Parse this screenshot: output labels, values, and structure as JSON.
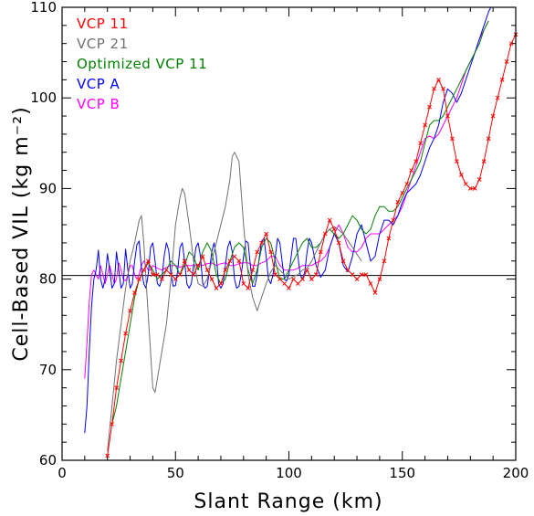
{
  "chart_data": {
    "type": "line",
    "xlabel": "Slant Range (km)",
    "ylabel": "Cell-Based VIL (kg m⁻²)",
    "xlim": [
      0,
      200
    ],
    "ylim": [
      60,
      110
    ],
    "xticks": [
      "0",
      "50",
      "100",
      "150",
      "200"
    ],
    "yticks": [
      "60",
      "70",
      "80",
      "90",
      "100",
      "110"
    ],
    "reference_line": 80.4,
    "legend_position": "top-left",
    "series": [
      {
        "name": "VCP 11",
        "color": "#ff0000",
        "marker": "x",
        "x": [
          20,
          22,
          24,
          26,
          28,
          30,
          32,
          34,
          36,
          38,
          40,
          42,
          44,
          46,
          48,
          50,
          52,
          54,
          56,
          58,
          60,
          62,
          64,
          66,
          68,
          70,
          72,
          74,
          76,
          78,
          80,
          82,
          84,
          86,
          88,
          90,
          92,
          94,
          96,
          98,
          100,
          102,
          104,
          106,
          108,
          110,
          112,
          114,
          116,
          118,
          120,
          122,
          124,
          126,
          128,
          130,
          132,
          134,
          136,
          138,
          140,
          142,
          144,
          146,
          148,
          150,
          152,
          154,
          156,
          158,
          160,
          162,
          164,
          166,
          168,
          170,
          172,
          174,
          176,
          178,
          180,
          182,
          184,
          186,
          188,
          190,
          192,
          194,
          196,
          198,
          200
        ],
        "y": [
          60.5,
          64,
          68,
          71,
          74,
          76.5,
          78.5,
          80,
          81,
          82,
          80.5,
          80.5,
          80,
          81,
          80.5,
          80,
          80.5,
          82,
          81,
          80.5,
          81.5,
          82.5,
          81,
          80,
          79,
          79.5,
          81,
          82,
          82.5,
          82,
          79.5,
          79,
          81,
          83,
          84,
          85,
          83,
          80.5,
          80,
          79.5,
          79,
          80,
          79.5,
          80,
          81,
          80,
          80.5,
          83,
          85,
          86.5,
          85.5,
          84,
          82,
          81,
          80.5,
          80,
          80.5,
          80.5,
          79.5,
          78.5,
          80,
          82,
          84.5,
          86.5,
          88.5,
          89.5,
          90.5,
          92,
          93,
          95,
          97,
          99,
          101,
          102,
          101,
          98,
          95.5,
          93,
          91.5,
          90.5,
          90,
          90,
          91,
          93,
          95.5,
          98,
          100,
          102,
          104,
          106,
          107
        ]
      },
      {
        "name": "VCP 21",
        "color": "#707070",
        "x": [
          20,
          22,
          24,
          26,
          28,
          30,
          32,
          34,
          35,
          36,
          38,
          40,
          41,
          42,
          44,
          46,
          48,
          50,
          52,
          53,
          54,
          56,
          58,
          60,
          62,
          64,
          66,
          68,
          70,
          72,
          74,
          75,
          76,
          77,
          78,
          80,
          82,
          84,
          86,
          88,
          90,
          92,
          94,
          96,
          98,
          100,
          102,
          104,
          106,
          108,
          110,
          112,
          114,
          116,
          118,
          120,
          124,
          128,
          132
        ],
        "y": [
          61,
          66,
          71,
          75,
          79,
          82,
          84,
          86.5,
          87,
          84,
          76,
          68,
          67.5,
          69,
          72,
          75,
          80,
          86,
          89,
          90,
          89.5,
          86,
          82,
          79.5,
          79.2,
          80,
          82,
          84,
          86,
          88,
          91,
          93.5,
          94,
          93.5,
          93,
          86,
          80.5,
          78,
          76.5,
          78,
          79.5,
          80.8,
          81.5,
          81,
          80.5,
          80,
          80.3,
          80.5,
          81,
          81.2,
          82,
          83,
          84,
          85,
          85.5,
          85.8,
          85,
          83.5,
          82
        ]
      },
      {
        "name": "Optimized VCP 11",
        "color": "#008000",
        "x": [
          22,
          24,
          26,
          28,
          30,
          32,
          34,
          36,
          38,
          40,
          42,
          44,
          46,
          48,
          50,
          52,
          54,
          56,
          58,
          60,
          62,
          64,
          66,
          68,
          70,
          72,
          74,
          76,
          78,
          80,
          82,
          84,
          86,
          88,
          90,
          92,
          94,
          96,
          98,
          100,
          102,
          104,
          106,
          108,
          110,
          112,
          114,
          116,
          118,
          120,
          122,
          124,
          126,
          128,
          130,
          132,
          134,
          136,
          138,
          140,
          142,
          144,
          146,
          148,
          150,
          152,
          154,
          156,
          158,
          160,
          162,
          164,
          166,
          168,
          170,
          172,
          174,
          176,
          178,
          180,
          182,
          184,
          186,
          188
        ],
        "y": [
          64,
          66,
          69,
          72,
          75,
          78,
          80,
          81,
          81.8,
          81,
          80,
          80.5,
          81,
          82,
          81.5,
          80.5,
          81.5,
          83,
          82.5,
          81,
          83,
          84,
          83,
          80.5,
          79.5,
          80,
          82,
          83.5,
          84,
          83.5,
          81,
          79.5,
          81,
          83.5,
          84.5,
          84,
          82,
          80,
          80,
          81,
          82,
          83,
          84,
          84.5,
          83.5,
          83.5,
          84,
          85,
          85.5,
          85,
          84.5,
          85,
          86,
          87,
          86.5,
          85.5,
          85,
          85.5,
          87,
          88,
          88,
          87.5,
          87.5,
          88,
          89,
          90,
          91,
          92,
          93,
          95,
          97,
          97.5,
          97.5,
          98,
          99,
          100,
          101,
          102,
          103,
          104,
          105,
          106,
          107.5,
          108.5
        ]
      },
      {
        "name": "VCP A",
        "color": "#0000ff",
        "x": [
          10,
          11,
          12,
          13,
          14,
          15,
          16,
          17,
          18,
          19,
          20,
          21,
          22,
          23,
          24,
          25,
          26,
          27,
          28,
          29,
          30,
          31,
          32,
          33,
          34,
          35,
          36,
          37,
          38,
          39,
          40,
          41,
          42,
          43,
          44,
          45,
          46,
          47,
          48,
          49,
          50,
          51,
          52,
          53,
          54,
          55,
          56,
          57,
          58,
          59,
          60,
          61,
          62,
          63,
          64,
          65,
          66,
          67,
          68,
          69,
          70,
          71,
          72,
          73,
          74,
          75,
          76,
          77,
          78,
          79,
          80,
          81,
          82,
          83,
          84,
          85,
          86,
          87,
          88,
          89,
          90,
          91,
          92,
          93,
          94,
          95,
          96,
          97,
          98,
          99,
          100,
          101,
          102,
          103,
          104,
          105,
          106,
          107,
          108,
          109,
          110,
          112,
          114,
          116,
          118,
          120,
          122,
          124,
          126,
          128,
          130,
          132,
          134,
          136,
          138,
          140,
          142,
          144,
          146,
          148,
          150,
          152,
          154,
          156,
          158,
          160,
          162,
          164,
          166,
          168,
          170,
          172,
          174,
          176,
          178,
          180,
          182,
          184,
          186,
          188,
          189
        ],
        "y": [
          63,
          66,
          72,
          77,
          80,
          81,
          83.2,
          80,
          79,
          80,
          82.8,
          81,
          79,
          79.5,
          83,
          81,
          79,
          79.5,
          83.3,
          81,
          79,
          79.5,
          82,
          83.8,
          84.2,
          81,
          79.5,
          79,
          80.5,
          83.5,
          84,
          82,
          79.5,
          79.2,
          80,
          82.5,
          84,
          83.2,
          80.5,
          79.2,
          79.3,
          81,
          83.5,
          84,
          82,
          79.5,
          79,
          79.5,
          81.5,
          83.5,
          84,
          82.5,
          79.5,
          79,
          79.2,
          81,
          83,
          84,
          82.5,
          79.5,
          79,
          79.5,
          81.5,
          83.5,
          84.2,
          83,
          80,
          79,
          79.2,
          80.5,
          82.5,
          84.2,
          84,
          81.5,
          79.2,
          79.2,
          80.5,
          82.5,
          84.2,
          84.5,
          82.5,
          80,
          79.5,
          80.5,
          82.5,
          84.5,
          84,
          82,
          80,
          79.8,
          80.5,
          82.5,
          84.5,
          84.5,
          82.5,
          80.5,
          80,
          80.8,
          83,
          84.5,
          84,
          81.5,
          80.2,
          81,
          83.5,
          85,
          84,
          81.5,
          80.8,
          82.5,
          85,
          86,
          84,
          82,
          82.5,
          85,
          86.5,
          86.5,
          86,
          87,
          88.5,
          89.5,
          90,
          90.5,
          91.5,
          93,
          94.5,
          95.5,
          97,
          99.5,
          101,
          100.5,
          99.5,
          100.5,
          102,
          103.5,
          105,
          106.5,
          108,
          109.5,
          110
        ]
      },
      {
        "name": "VCP B",
        "color": "#ff00ff",
        "x": [
          10,
          11,
          12,
          13,
          14,
          15,
          16,
          17,
          18,
          19,
          20,
          21,
          22,
          23,
          24,
          25,
          26,
          27,
          28,
          29,
          30,
          31,
          32,
          33,
          34,
          35,
          36,
          37,
          38,
          39,
          40,
          42,
          44,
          46,
          48,
          50,
          52,
          54,
          56,
          58,
          60,
          62,
          64,
          66,
          68,
          70,
          72,
          74,
          76,
          78,
          80,
          82,
          84,
          86,
          88,
          90,
          92,
          94,
          96,
          98,
          100,
          102,
          104,
          106,
          108,
          110,
          112,
          114,
          116,
          118,
          120,
          122,
          124,
          126,
          128,
          130,
          132,
          134,
          136,
          138,
          140,
          142,
          144,
          146,
          148,
          150,
          152,
          154,
          156,
          158,
          160,
          162,
          164,
          166,
          168,
          170,
          172,
          174,
          176,
          178,
          180,
          182,
          184,
          186,
          188
        ],
        "y": [
          69,
          73,
          77.5,
          80.5,
          81,
          80.5,
          80,
          81.5,
          80.5,
          79.5,
          80.5,
          81.5,
          80.5,
          79.5,
          80,
          81.8,
          81,
          80,
          79.8,
          80.5,
          81.5,
          81.5,
          80.5,
          80,
          80.5,
          81.5,
          82,
          81.5,
          81,
          81,
          81.5,
          81.2,
          81,
          81.3,
          81.5,
          81.5,
          81.3,
          81.5,
          81.5,
          81.5,
          81.6,
          81.5,
          81.7,
          81.8,
          81.5,
          81.7,
          81.8,
          81.5,
          81.5,
          81.7,
          81.8,
          81.8,
          81.5,
          81.5,
          81.8,
          82,
          82.5,
          82.5,
          81.5,
          81,
          81,
          81,
          81.2,
          81.5,
          81.5,
          81.5,
          81.8,
          82,
          82.5,
          83.5,
          85,
          86,
          85,
          83.5,
          83,
          83,
          83.5,
          84.5,
          85,
          85,
          85,
          85.5,
          86,
          86.5,
          87,
          88,
          89.5,
          91,
          92.5,
          94,
          95.5,
          95.8,
          95.5,
          96,
          97,
          98,
          99,
          100,
          101.5,
          103,
          104,
          105,
          106.5,
          107.5,
          108.5
        ]
      }
    ]
  }
}
